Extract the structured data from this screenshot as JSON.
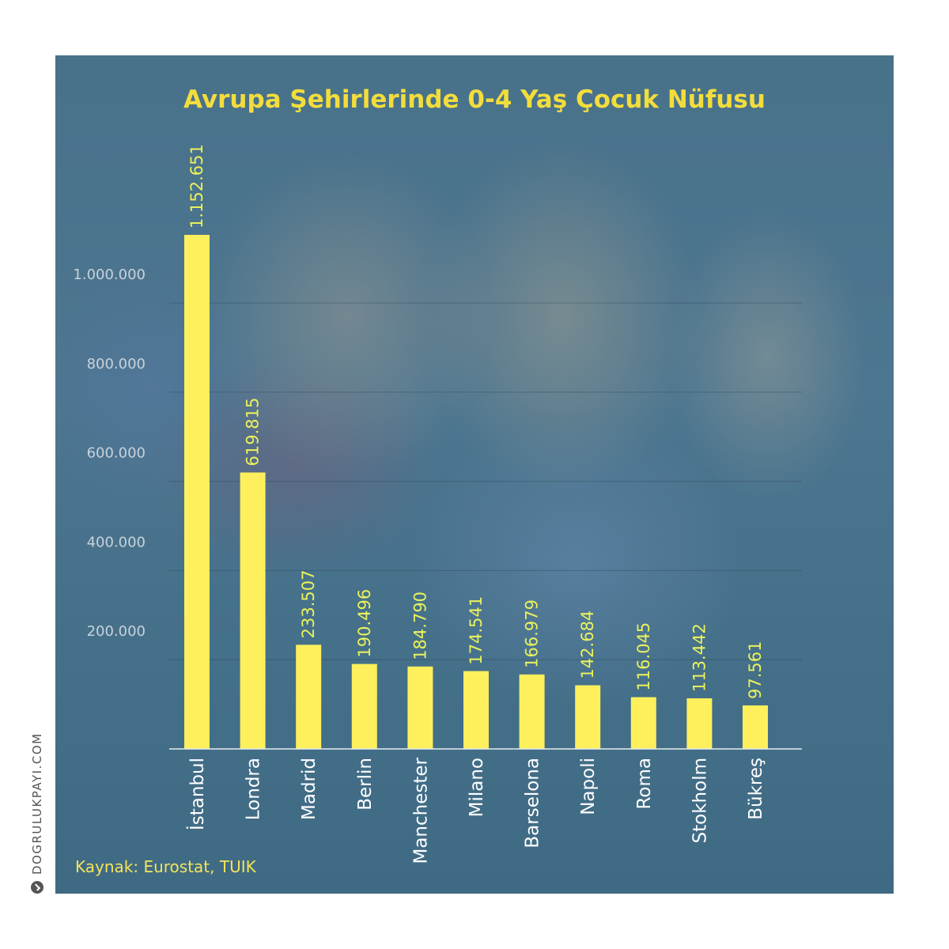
{
  "chart_data": {
    "type": "bar",
    "title": "Avrupa Şehirlerinde 0-4 Yaş Çocuk Nüfusu",
    "categories": [
      "İstanbul",
      "Londra",
      "Madrid",
      "Berlin",
      "Manchester",
      "Milano",
      "Barselona",
      "Napoli",
      "Roma",
      "Stokholm",
      "Bükreş"
    ],
    "values": [
      1152651,
      619815,
      233507,
      190496,
      184790,
      174541,
      166979,
      142684,
      116045,
      113442,
      97561
    ],
    "value_labels": [
      "1.152.651",
      "619.815",
      "233.507",
      "190.496",
      "184.790",
      "174.541",
      "166.979",
      "142.684",
      "116.045",
      "113.442",
      "97.561"
    ],
    "yticks": [
      200000,
      400000,
      600000,
      800000,
      1000000
    ],
    "ytick_labels": [
      "200.000",
      "400.000",
      "600.000",
      "800.000",
      "1.000.000"
    ],
    "ylim": [
      0,
      1150000
    ],
    "grid": true,
    "xlabel": "",
    "ylabel": ""
  },
  "source": "Kaynak: Eurostat, TUIK",
  "brand": "DOGRULUKPAYI.COM",
  "colors": {
    "bar": "#fdf05c",
    "title": "#f3dd3c",
    "value_label": "#eaf25c",
    "tick_label": "#c8d2da",
    "category_label": "#ffffff",
    "grid": "rgba(40,60,75,0.35)"
  }
}
